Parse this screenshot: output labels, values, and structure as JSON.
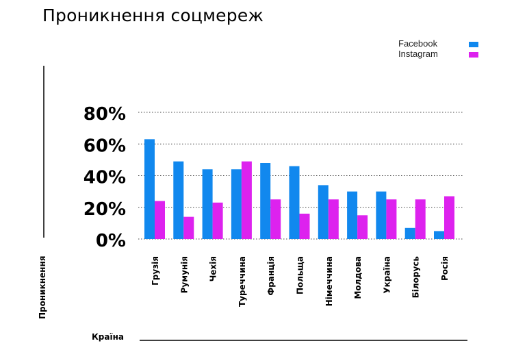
{
  "chart_data": {
    "type": "bar",
    "title": "Проникнення соцмереж",
    "xlabel": "Країна",
    "ylabel": "Проникнення",
    "categories": [
      "Грузія",
      "Румунія",
      "Чехія",
      "Туреччина",
      "Франція",
      "Польща",
      "Німеччина",
      "Молдова",
      "Україна",
      "Білорусь",
      "Росія"
    ],
    "series": [
      {
        "name": "Facebook",
        "color": "#1188ee",
        "values": [
          63,
          49,
          44,
          44,
          48,
          46,
          34,
          30,
          30,
          7,
          5
        ]
      },
      {
        "name": "Instagram",
        "color": "#dd22ee",
        "values": [
          24,
          14,
          23,
          49,
          25,
          16,
          25,
          15,
          25,
          25,
          27
        ]
      }
    ],
    "ylim": [
      0,
      80
    ],
    "yticks": [
      0,
      20,
      40,
      60,
      80
    ],
    "ytick_labels": [
      "0%",
      "20%",
      "40%",
      "60%",
      "80%"
    ],
    "grid": true,
    "legend_position": "top-right"
  }
}
